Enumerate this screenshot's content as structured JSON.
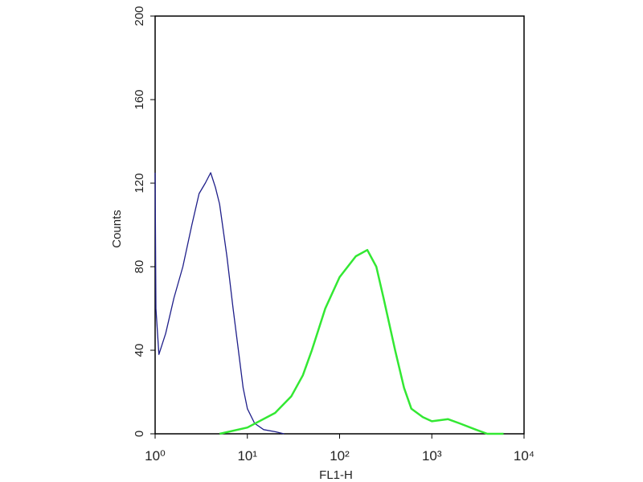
{
  "chart_data": {
    "type": "line",
    "xlabel": "FL1-H",
    "ylabel": "Counts",
    "xscale": "log",
    "xlim": [
      1,
      10000
    ],
    "xticks": [
      {
        "value": 1,
        "label": "10⁰"
      },
      {
        "value": 10,
        "label": "10¹"
      },
      {
        "value": 100,
        "label": "10²"
      },
      {
        "value": 1000,
        "label": "10³"
      },
      {
        "value": 10000,
        "label": "10⁴"
      }
    ],
    "ylim": [
      0,
      200
    ],
    "yticks": [
      0,
      40,
      80,
      120,
      160,
      200
    ],
    "series": [
      {
        "color": "#1f1f8a",
        "width": 1.3,
        "x": [
          1.0,
          1.02,
          1.1,
          1.3,
          1.6,
          2,
          2.5,
          3,
          3.5,
          4,
          4.5,
          5,
          6,
          7,
          8,
          9,
          10,
          12,
          15,
          20,
          25
        ],
        "values": [
          125,
          60,
          38,
          48,
          65,
          80,
          100,
          115,
          120,
          125,
          118,
          110,
          85,
          60,
          40,
          22,
          12,
          5,
          2,
          1,
          0
        ]
      },
      {
        "color": "#33e833",
        "width": 2.5,
        "x": [
          5,
          10,
          20,
          30,
          40,
          50,
          70,
          100,
          150,
          200,
          250,
          300,
          400,
          500,
          600,
          800,
          1000,
          1500,
          2000,
          3000,
          4000,
          6000
        ],
        "values": [
          0,
          3,
          10,
          18,
          28,
          40,
          60,
          75,
          85,
          88,
          80,
          65,
          40,
          22,
          12,
          8,
          6,
          7,
          5,
          2,
          0,
          0
        ]
      }
    ]
  }
}
